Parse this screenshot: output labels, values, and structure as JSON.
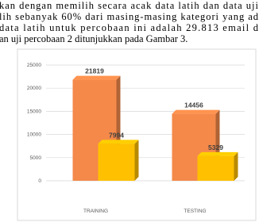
{
  "paragraph": {
    "lines": [
      "kan dengan memilih secara acak data latih dan data uji",
      "lih sebanyak 60% dari masing-masing kategori yang ad",
      "data latih untuk percobaan ini adalah 29.813 email d",
      "an uji percobaan 2 ditunjukkan pada Gambar 3."
    ]
  },
  "chart_data": {
    "type": "bar3d",
    "categories": [
      "TRAINING",
      "TESTING"
    ],
    "series": [
      {
        "color": "#f4894a",
        "values": [
          21819,
          14456
        ]
      },
      {
        "color": "#ffc000",
        "values": [
          7994,
          5329
        ]
      }
    ],
    "ylim": [
      0,
      25000
    ],
    "yticks": [
      0,
      5000,
      10000,
      15000,
      20000,
      25000
    ],
    "grid": true
  }
}
